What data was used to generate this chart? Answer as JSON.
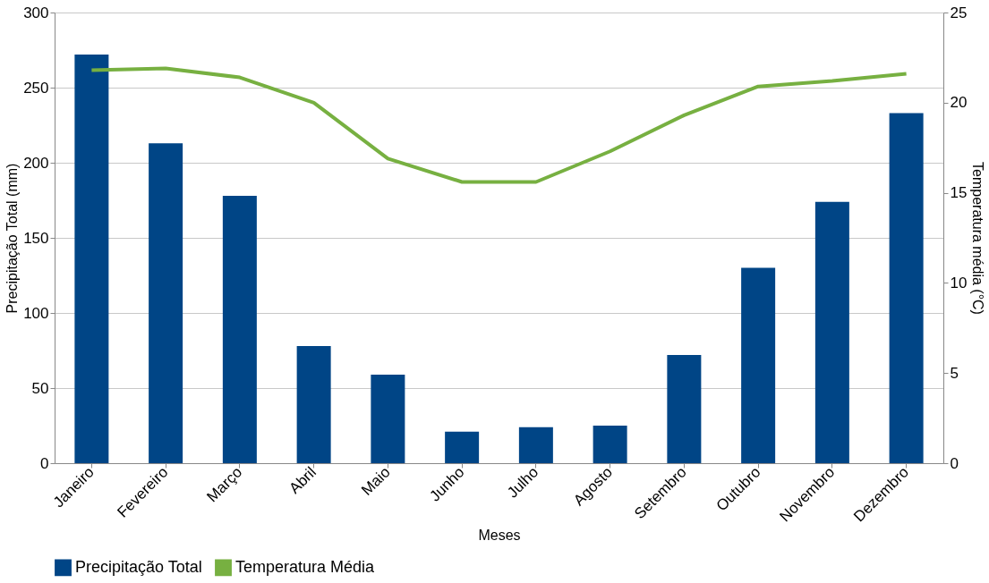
{
  "chart_data": {
    "type": "bar",
    "xlabel": "Meses",
    "ylabel": "Precipitação Total (mm)",
    "y2label": "Temperatura média (°C)",
    "categories": [
      "Janeiro",
      "Fevereiro",
      "Março",
      "Abril",
      "Maio",
      "Junho",
      "Julho",
      "Agosto",
      "Setembro",
      "Outubro",
      "Novembro",
      "Dezembro"
    ],
    "series": [
      {
        "name": "Precipitação Total",
        "color": "#004586",
        "values": [
          272,
          213,
          178,
          78,
          59,
          21,
          24,
          25,
          72,
          130,
          174,
          233
        ]
      },
      {
        "name": "Temperatura Média",
        "type": "line",
        "axis": "y2",
        "color": "#77b041",
        "values": [
          21.8,
          21.9,
          21.4,
          20.0,
          16.9,
          15.6,
          15.6,
          17.3,
          19.3,
          20.9,
          21.2,
          21.6
        ]
      }
    ],
    "ylim": [
      0,
      300
    ],
    "yticks": [
      0,
      50,
      100,
      150,
      200,
      250,
      300
    ],
    "y2lim": [
      0,
      25
    ],
    "y2ticks": [
      0,
      5,
      10,
      15,
      20,
      25
    ],
    "grid": "y",
    "legend": "bottom",
    "marker": "none",
    "line_style": "solid"
  }
}
